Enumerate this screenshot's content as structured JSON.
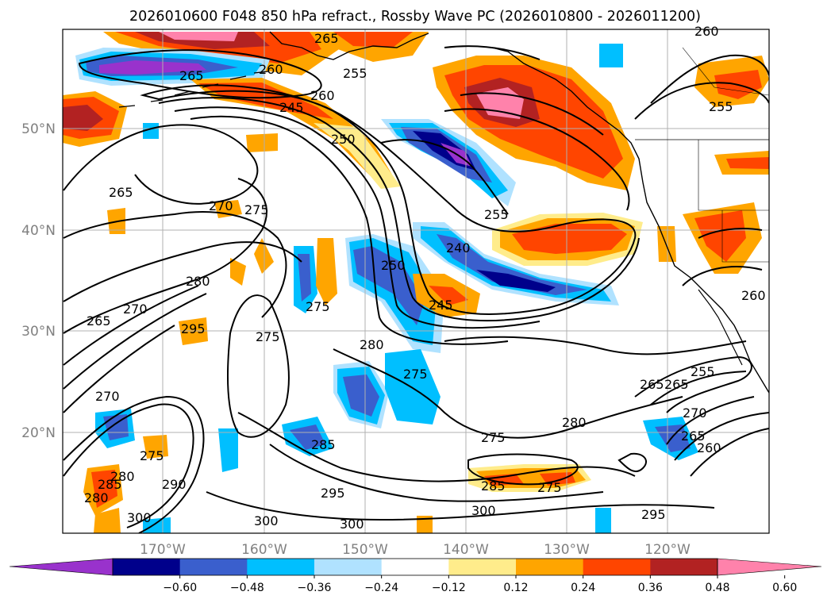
{
  "title": "2026010600 F048 850 hPa refract., Rossby Wave PC (2026010800 - 2026011200)",
  "map": {
    "lon_labels": [
      "170°W",
      "160°W",
      "150°W",
      "140°W",
      "130°W",
      "120°W"
    ],
    "lat_labels": [
      "50°N",
      "40°N",
      "30°N",
      "20°N"
    ],
    "grid": true,
    "contour_field": "850 hPa refractivity",
    "contour_labels": [
      "265",
      "260",
      "255",
      "260",
      "265",
      "245",
      "260",
      "250",
      "255",
      "265",
      "270",
      "275",
      "240",
      "250",
      "280",
      "270",
      "275",
      "275",
      "265",
      "295",
      "255",
      "245",
      "280",
      "275",
      "260",
      "270",
      "280",
      "275",
      "280",
      "285",
      "290",
      "285",
      "300",
      "295",
      "275",
      "285",
      "280",
      "300",
      "300",
      "300",
      "295",
      "265",
      "265",
      "255",
      "270",
      "265",
      "260",
      "275"
    ]
  },
  "colorbar": {
    "ticks": [
      "−0.60",
      "−0.48",
      "−0.36",
      "−0.24",
      "−0.12",
      "0.12",
      "0.24",
      "0.36",
      "0.48",
      "0.60"
    ],
    "colors": [
      "#9932cc",
      "#00008b",
      "#3a5fcd",
      "#00bfff",
      "#b0e2ff",
      "#ffffff",
      "#ffec8b",
      "#ffa500",
      "#ff4500",
      "#b22222",
      "#ff82ab"
    ],
    "extend": "both"
  }
}
